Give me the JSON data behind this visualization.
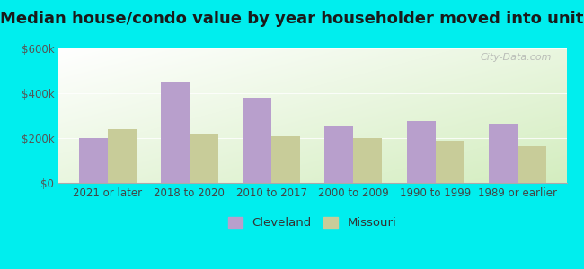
{
  "title": "Median house/condo value by year householder moved into unit",
  "categories": [
    "2021 or later",
    "2018 to 2020",
    "2010 to 2017",
    "2000 to 2009",
    "1990 to 1999",
    "1989 or earlier"
  ],
  "cleveland": [
    200000,
    450000,
    380000,
    255000,
    275000,
    265000
  ],
  "missouri": [
    240000,
    220000,
    207000,
    200000,
    190000,
    163000
  ],
  "cleveland_color": "#b89fcc",
  "missouri_color": "#c8cc99",
  "background_color": "#00eeee",
  "ylim": [
    0,
    600000
  ],
  "yticks": [
    0,
    200000,
    400000,
    600000
  ],
  "ytick_labels": [
    "$0",
    "$200k",
    "$400k",
    "$600k"
  ],
  "bar_width": 0.35,
  "legend_labels": [
    "Cleveland",
    "Missouri"
  ],
  "watermark": "City-Data.com",
  "title_fontsize": 13,
  "tick_fontsize": 8.5,
  "legend_fontsize": 9.5
}
